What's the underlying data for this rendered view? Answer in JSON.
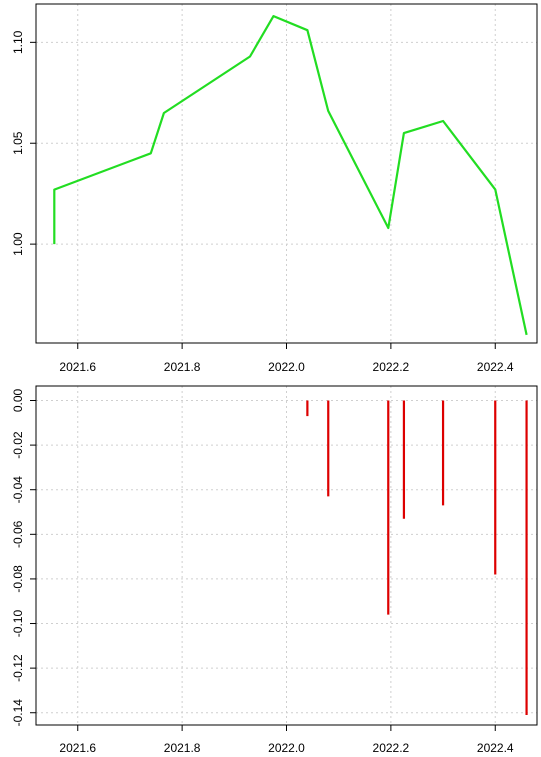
{
  "chart_data": [
    {
      "type": "line",
      "xlim": [
        2021.52,
        2022.48
      ],
      "ylim": [
        0.951,
        1.119
      ],
      "x_ticks": [
        2021.6,
        2021.8,
        2022.0,
        2022.2,
        2022.4
      ],
      "x_tick_labels": [
        "2021.6",
        "2021.8",
        "2022.0",
        "2022.2",
        "2022.4"
      ],
      "y_ticks": [
        1.0,
        1.05,
        1.1
      ],
      "y_tick_labels": [
        "1.00",
        "1.05",
        "1.10"
      ],
      "grid": true,
      "line_color": "#22dd22",
      "series": [
        {
          "x": [
            2021.555,
            2021.555,
            2021.74,
            2021.765,
            2021.93,
            2021.975,
            2022.04,
            2022.08,
            2022.195,
            2022.225,
            2022.3,
            2022.4,
            2022.46
          ],
          "y": [
            1.0,
            1.027,
            1.045,
            1.065,
            1.093,
            1.113,
            1.106,
            1.066,
            1.008,
            1.055,
            1.061,
            1.027,
            0.955
          ]
        }
      ]
    },
    {
      "type": "bar",
      "xlim": [
        2021.52,
        2022.48
      ],
      "ylim": [
        -0.1455,
        0.0065
      ],
      "x_ticks": [
        2021.6,
        2021.8,
        2022.0,
        2022.2,
        2022.4
      ],
      "x_tick_labels": [
        "2021.6",
        "2021.8",
        "2022.0",
        "2022.2",
        "2022.4"
      ],
      "y_ticks": [
        0.0,
        -0.02,
        -0.04,
        -0.06,
        -0.08,
        -0.1,
        -0.12,
        -0.14
      ],
      "y_tick_labels": [
        "0.00",
        "-0.02",
        "-0.04",
        "-0.06",
        "-0.08",
        "-0.10",
        "-0.12",
        "-0.14"
      ],
      "grid": true,
      "bar_color": "#dd0000",
      "series": [
        {
          "x": [
            2022.04,
            2022.08,
            2022.195,
            2022.225,
            2022.3,
            2022.4,
            2022.46
          ],
          "y": [
            -0.007,
            -0.043,
            -0.096,
            -0.053,
            -0.047,
            -0.078,
            -0.141
          ]
        }
      ]
    }
  ]
}
